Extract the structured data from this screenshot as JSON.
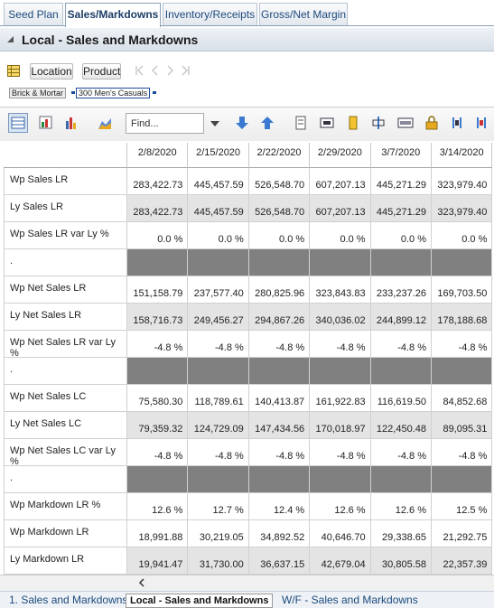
{
  "tabs": [
    "Seed Plan",
    "Sales/Markdowns",
    "Inventory/Receipts",
    "Gross/Net Margin"
  ],
  "section_title": "Local - Sales and Markdowns",
  "buttons": [
    "Location",
    "Product"
  ],
  "breadcrumb": [
    "Brick & Mortar",
    "300 Men's Casuals"
  ],
  "find_placeholder": "Find...",
  "table": {
    "columns": [
      "2/8/2020",
      "2/15/2020",
      "2/22/2020",
      "2/29/2020",
      "3/7/2020",
      "3/14/2020"
    ],
    "rows": [
      {
        "label": "Wp Sales LR",
        "cells": [
          "283,422.73",
          "445,457.59",
          "526,548.70",
          "607,207.13",
          "445,271.29",
          "323,979.40"
        ]
      },
      {
        "label": "Ly Sales LR",
        "cells": [
          "283,422.73",
          "445,457.59",
          "526,548.70",
          "607,207.13",
          "445,271.29",
          "323,979.40"
        ]
      },
      {
        "label": "Wp Sales LR var Ly %",
        "cells": [
          "0.0 %",
          "0.0 %",
          "0.0 %",
          "0.0 %",
          "0.0 %",
          "0.0 %"
        ]
      },
      {
        "label": "."
      },
      {
        "label": "Wp Net Sales LR",
        "cells": [
          "151,158.79",
          "237,577.40",
          "280,825.96",
          "323,843.83",
          "233,237.26",
          "169,703.50"
        ]
      },
      {
        "label": "Ly Net Sales LR",
        "cells": [
          "158,716.73",
          "249,456.27",
          "294,867.26",
          "340,036.02",
          "244,899.12",
          "178,188.68"
        ]
      },
      {
        "label": "Wp Net Sales LR var Ly %",
        "cells": [
          "-4.8 %",
          "-4.8 %",
          "-4.8 %",
          "-4.8 %",
          "-4.8 %",
          "-4.8 %"
        ]
      },
      {
        "label": "."
      },
      {
        "label": "Wp Net Sales LC",
        "cells": [
          "75,580.30",
          "118,789.61",
          "140,413.87",
          "161,922.83",
          "116,619.50",
          "84,852.68"
        ]
      },
      {
        "label": "Ly Net Sales LC",
        "cells": [
          "79,359.32",
          "124,729.09",
          "147,434.56",
          "170,018.97",
          "122,450.48",
          "89,095.31"
        ]
      },
      {
        "label": "Wp Net Sales LC var Ly %",
        "cells": [
          "-4.8 %",
          "-4.8 %",
          "-4.8 %",
          "-4.8 %",
          "-4.8 %",
          "-4.8 %"
        ]
      },
      {
        "label": "."
      },
      {
        "label": "Wp Markdown LR %",
        "cells": [
          "12.6 %",
          "12.7 %",
          "12.4 %",
          "12.6 %",
          "12.6 %",
          "12.5 %"
        ]
      },
      {
        "label": "Wp Markdown LR",
        "cells": [
          "18,991.88",
          "30,219.05",
          "34,892.52",
          "40,646.70",
          "29,338.65",
          "21,292.75"
        ]
      },
      {
        "label": "Ly Markdown LR",
        "cells": [
          "19,941.47",
          "31,730.00",
          "36,637.15",
          "42,679.04",
          "30,805.58",
          "22,357.39"
        ]
      }
    ]
  },
  "bottom_tabs": [
    "1. Sales and Markdowns",
    "Local - Sales and Markdowns",
    "W/F - Sales and Markdowns"
  ]
}
